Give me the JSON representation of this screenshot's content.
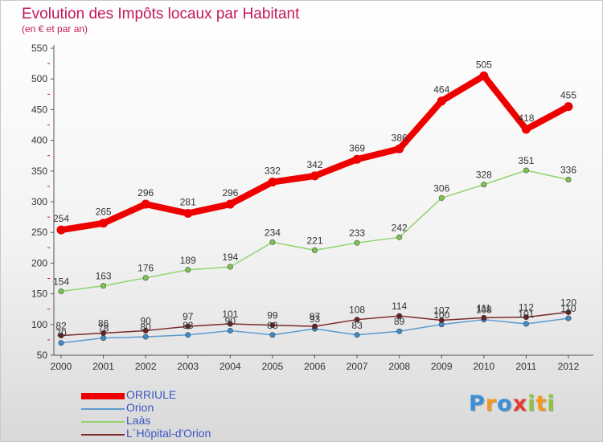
{
  "chart_data": {
    "type": "line",
    "title": "Evolution des Impôts locaux par Habitant",
    "subtitle": "(en € et par an)",
    "categories": [
      "2000",
      "2001",
      "2002",
      "2003",
      "2004",
      "2005",
      "2006",
      "2007",
      "2008",
      "2009",
      "2010",
      "2011",
      "2012"
    ],
    "y_ticks": [
      50,
      100,
      150,
      200,
      250,
      300,
      350,
      400,
      450,
      500,
      550
    ],
    "ylim": [
      50,
      550
    ],
    "grid": false,
    "legend_position": "bottom-left",
    "series": [
      {
        "name": "ORRIULE",
        "color": "#ee0000",
        "values": [
          254,
          265,
          296,
          281,
          296,
          332,
          342,
          369,
          386,
          464,
          505,
          418,
          455
        ]
      },
      {
        "name": "Orion",
        "color": "#5b9bd0",
        "values": [
          70,
          78,
          80,
          83,
          90,
          83,
          93,
          83,
          89,
          100,
          108,
          101,
          110
        ]
      },
      {
        "name": "Laàs",
        "color": "#92d36e",
        "values": [
          154,
          163,
          176,
          189,
          194,
          234,
          221,
          233,
          242,
          306,
          328,
          351,
          336
        ]
      },
      {
        "name": "L`Hôpital-d'Orion",
        "color": "#7c2a2a",
        "values": [
          82,
          86,
          90,
          97,
          101,
          99,
          97,
          108,
          114,
          107,
          111,
          112,
          120
        ]
      }
    ]
  },
  "logo": {
    "letters": [
      "P",
      "r",
      "o",
      "x",
      "i",
      "t",
      "i"
    ],
    "colors": [
      "#3b8fd6",
      "#f29a1e",
      "#3b8fd6",
      "#e63b2e",
      "#8cc63f",
      "#f29a1e",
      "#8cc63f"
    ]
  }
}
